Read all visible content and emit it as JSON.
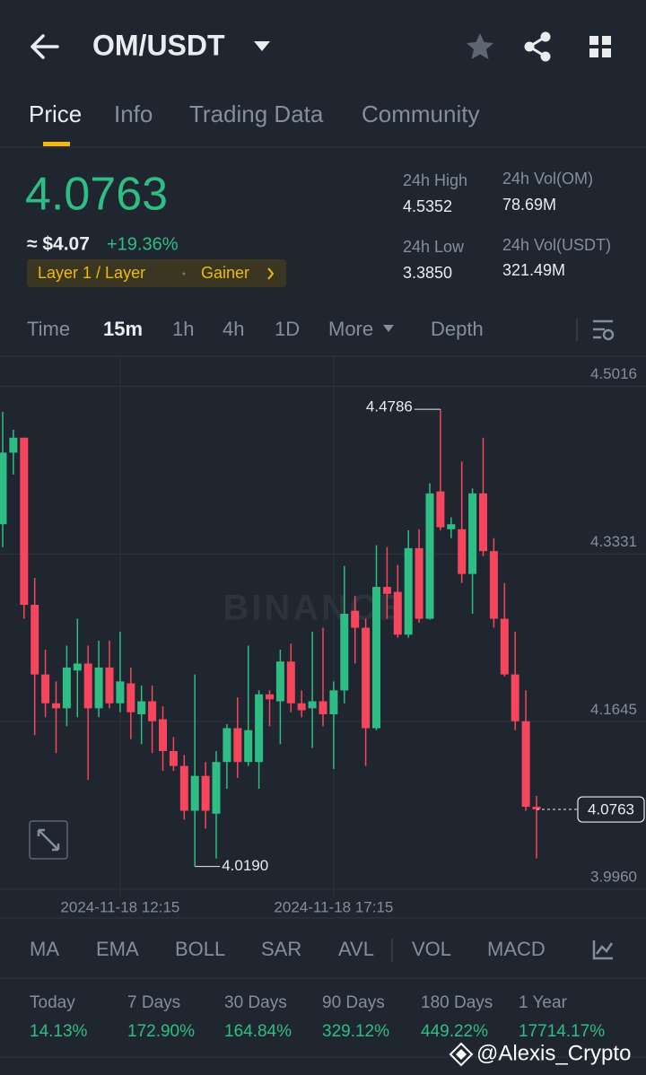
{
  "header": {
    "pair": "OM/USDT"
  },
  "tabs": [
    "Price",
    "Info",
    "Trading Data",
    "Community"
  ],
  "price": {
    "approx": "≈ $4.07",
    "change": "+19.36%",
    "tags": [
      "Layer 1 / Layer",
      "Gainer"
    ]
  },
  "stats": [
    {
      "label": "24h High",
      "value": "4.5352"
    },
    {
      "label": "24h Vol(OM)",
      "value": "78.69M"
    },
    {
      "label": "24h Low",
      "value": "3.3850"
    },
    {
      "label": "24h Vol(USDT)",
      "value": "321.49M"
    }
  ],
  "intervals": [
    "Time",
    "15m",
    "1h",
    "4h",
    "1D",
    "More",
    "Depth"
  ],
  "chart_data": {
    "type": "candlestick",
    "watermark": "BINANCE",
    "x": [
      "2024-11-18 09:30",
      "2024-11-18 09:45",
      "2024-11-18 10:00",
      "2024-11-18 10:15",
      "2024-11-18 10:30",
      "2024-11-18 10:45",
      "2024-11-18 11:00",
      "2024-11-18 11:15",
      "2024-11-18 11:30",
      "2024-11-18 11:45",
      "2024-11-18 12:00",
      "2024-11-18 12:15",
      "2024-11-18 12:30",
      "2024-11-18 12:45",
      "2024-11-18 13:00",
      "2024-11-18 13:15",
      "2024-11-18 13:30",
      "2024-11-18 13:45",
      "2024-11-18 14:00",
      "2024-11-18 14:15",
      "2024-11-18 14:30",
      "2024-11-18 14:45",
      "2024-11-18 15:00",
      "2024-11-18 15:15",
      "2024-11-18 15:30",
      "2024-11-18 15:45",
      "2024-11-18 16:00",
      "2024-11-18 16:15",
      "2024-11-18 16:30",
      "2024-11-18 16:45",
      "2024-11-18 17:00",
      "2024-11-18 17:15",
      "2024-11-18 17:30",
      "2024-11-18 17:45",
      "2024-11-18 18:00",
      "2024-11-18 18:15",
      "2024-11-18 18:30",
      "2024-11-18 18:45",
      "2024-11-18 19:00",
      "2024-11-18 19:15",
      "2024-11-18 19:30",
      "2024-11-18 19:45",
      "2024-11-18 20:00",
      "2024-11-18 20:15",
      "2024-11-18 20:30",
      "2024-11-18 20:45",
      "2024-11-18 21:00",
      "2024-11-18 21:15",
      "2024-11-18 21:30",
      "2024-11-18 21:45",
      "2024-11-18 22:00"
    ],
    "open": [
      4.363,
      4.435,
      4.45,
      4.282,
      4.212,
      4.183,
      4.178,
      4.216,
      4.223,
      4.178,
      4.219,
      4.183,
      4.203,
      4.172,
      4.185,
      4.167,
      4.135,
      4.12,
      4.075,
      4.11,
      4.072,
      4.124,
      4.158,
      4.124,
      4.124,
      4.192,
      4.185,
      4.225,
      4.183,
      4.178,
      4.185,
      4.172,
      4.196,
      4.276,
      4.259,
      4.158,
      4.3,
      4.295,
      4.252,
      4.339,
      4.268,
      4.396,
      4.358,
      4.358,
      4.313,
      4.394,
      4.336,
      4.268,
      4.212,
      4.165,
      4.079
    ],
    "high": [
      4.476,
      4.458,
      4.45,
      4.309,
      4.237,
      4.205,
      4.241,
      4.268,
      4.241,
      4.246,
      4.246,
      4.255,
      4.219,
      4.201,
      4.201,
      4.18,
      4.149,
      4.131,
      4.212,
      4.124,
      4.135,
      4.162,
      4.189,
      4.241,
      4.196,
      4.196,
      4.237,
      4.243,
      4.196,
      4.255,
      4.259,
      4.205,
      4.321,
      4.291,
      4.268,
      4.342,
      4.34,
      4.322,
      4.357,
      4.358,
      4.404,
      4.4786,
      4.37,
      4.426,
      4.399,
      4.45,
      4.349,
      4.304,
      4.255,
      4.196,
      4.09
    ],
    "low": [
      4.34,
      4.413,
      4.268,
      4.151,
      4.169,
      4.133,
      4.16,
      4.169,
      4.106,
      4.169,
      4.178,
      4.174,
      4.147,
      4.142,
      4.133,
      4.115,
      4.115,
      4.066,
      4.019,
      4.057,
      4.027,
      4.097,
      4.108,
      4.12,
      4.097,
      4.16,
      4.142,
      4.174,
      4.169,
      4.138,
      4.16,
      4.117,
      4.183,
      4.223,
      4.12,
      4.156,
      4.268,
      4.249,
      4.249,
      4.264,
      4.267,
      4.357,
      4.349,
      4.304,
      4.273,
      4.331,
      4.259,
      4.21,
      4.156,
      4.075,
      4.027
    ],
    "close": [
      4.435,
      4.45,
      4.282,
      4.212,
      4.183,
      4.178,
      4.219,
      4.223,
      4.178,
      4.219,
      4.183,
      4.205,
      4.174,
      4.185,
      4.165,
      4.135,
      4.12,
      4.075,
      4.11,
      4.075,
      4.124,
      4.158,
      4.124,
      4.156,
      4.192,
      4.187,
      4.225,
      4.183,
      4.176,
      4.185,
      4.172,
      4.196,
      4.273,
      4.259,
      4.158,
      4.3,
      4.293,
      4.252,
      4.339,
      4.268,
      4.394,
      4.36,
      4.363,
      4.313,
      4.394,
      4.336,
      4.268,
      4.212,
      4.165,
      4.079,
      4.0763
    ],
    "low_label": "4.0190",
    "up_color": "#2ebd85",
    "down_color": "#f6465d",
    "ylim": [
      3.969,
      4.531
    ],
    "yticks": [
      4.5016,
      4.3331,
      4.1645,
      {
        "value": 3.996,
        "label": "3.9960"
      }
    ],
    "xticks": [
      "2024-11-18 12:15",
      "2024-11-18 17:15"
    ],
    "grid": true
  },
  "indicators": [
    "MA",
    "EMA",
    "BOLL",
    "SAR",
    "AVL",
    "VOL",
    "MACD"
  ],
  "performance": [
    {
      "label": "Today",
      "value": "14.13%"
    },
    {
      "label": "7 Days",
      "value": "172.90%"
    },
    {
      "label": "30 Days",
      "value": "164.84%"
    },
    {
      "label": "90 Days",
      "value": "329.12%"
    },
    {
      "label": "180 Days",
      "value": "449.22%"
    },
    {
      "label": "1 Year",
      "value": "17714.17%"
    }
  ],
  "watermark": "@Alexis_Crypto"
}
